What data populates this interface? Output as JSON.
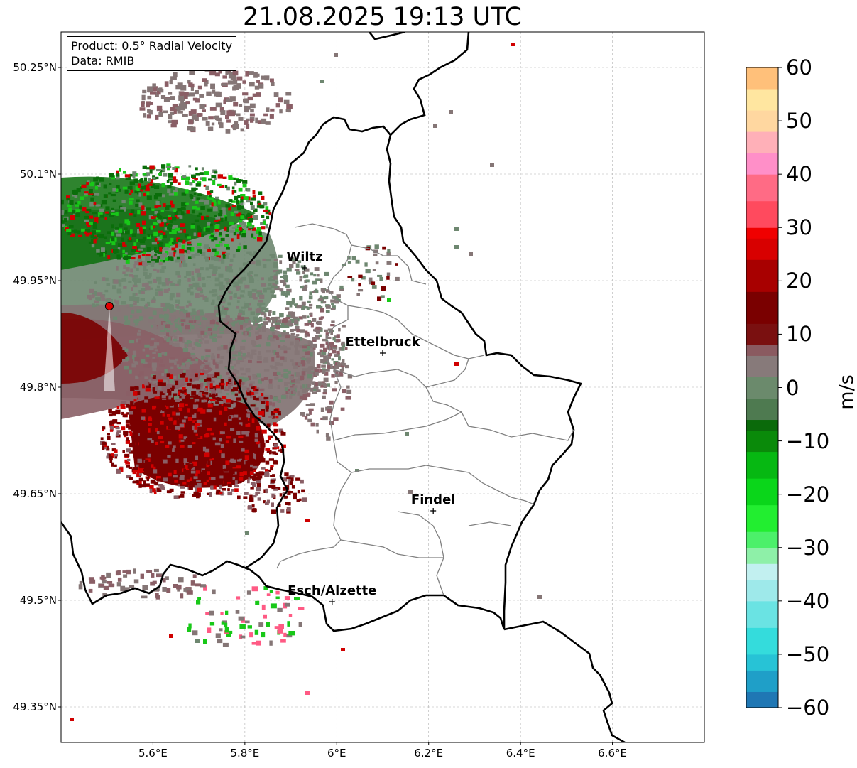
{
  "title": "21.08.2025 19:13 UTC",
  "infobox": {
    "product": "Product: 0.5° Radial Velocity",
    "data": "Data: RMIB"
  },
  "map": {
    "lon_range": [
      5.4,
      6.8
    ],
    "lat_range": [
      49.3,
      50.3
    ],
    "gridlines": true,
    "y_ticks": [
      "50.25°N",
      "50.1°N",
      "49.95°N",
      "49.8°N",
      "49.65°N",
      "49.5°N",
      "49.35°N"
    ],
    "x_ticks": [
      "5.6°E",
      "5.8°E",
      "6°E",
      "6.2°E",
      "6.4°E",
      "6.6°E"
    ],
    "radar_site": {
      "lon": 5.505,
      "lat": 49.914,
      "color": "#e00000"
    },
    "cities": [
      {
        "name": "Wiltz",
        "lon": 5.93,
        "lat": 49.968
      },
      {
        "name": "Ettelbruck",
        "lon": 6.1,
        "lat": 49.848
      },
      {
        "name": "Findel",
        "lon": 6.21,
        "lat": 49.626
      },
      {
        "name": "Esch/Alzette",
        "lon": 5.99,
        "lat": 49.498
      }
    ]
  },
  "colorbar": {
    "label": "m/s",
    "min": -60,
    "max": 60,
    "ticks": [
      "60",
      "50",
      "40",
      "30",
      "20",
      "10",
      "0",
      "−10",
      "−20",
      "−30",
      "−40",
      "−50",
      "−60"
    ],
    "tick_values": [
      60,
      50,
      40,
      30,
      20,
      10,
      0,
      -10,
      -20,
      -30,
      -40,
      -50,
      -60
    ],
    "stops": [
      {
        "v": -60,
        "c": "#1f77b4"
      },
      {
        "v": -57,
        "c": "#1f9fc8"
      },
      {
        "v": -53,
        "c": "#27c3d6"
      },
      {
        "v": -50,
        "c": "#34dcdc"
      },
      {
        "v": -45,
        "c": "#6ae3e3"
      },
      {
        "v": -40,
        "c": "#9ee9ea"
      },
      {
        "v": -36,
        "c": "#c2f0f0"
      },
      {
        "v": -33,
        "c": "#8ef0a8"
      },
      {
        "v": -30,
        "c": "#4cf06a"
      },
      {
        "v": -27,
        "c": "#22ee30"
      },
      {
        "v": -22,
        "c": "#0ad61a"
      },
      {
        "v": -17,
        "c": "#06b812"
      },
      {
        "v": -12,
        "c": "#0a8a0a"
      },
      {
        "v": -8,
        "c": "#0a6a0a"
      },
      {
        "v": -6,
        "c": "#4e7a50"
      },
      {
        "v": -2,
        "c": "#6b8a6c"
      },
      {
        "v": 2,
        "c": "#877a7a"
      },
      {
        "v": 6,
        "c": "#8a5a60"
      },
      {
        "v": 8,
        "c": "#7a1010"
      },
      {
        "v": 12,
        "c": "#7a0000"
      },
      {
        "v": 18,
        "c": "#a80000"
      },
      {
        "v": 24,
        "c": "#d80000"
      },
      {
        "v": 28,
        "c": "#f00000"
      },
      {
        "v": 30,
        "c": "#ff4a5e"
      },
      {
        "v": 35,
        "c": "#ff6b85"
      },
      {
        "v": 40,
        "c": "#ff8fc8"
      },
      {
        "v": 44,
        "c": "#ffb0b8"
      },
      {
        "v": 48,
        "c": "#ffd7a0"
      },
      {
        "v": 52,
        "c": "#ffe6a0"
      },
      {
        "v": 56,
        "c": "#ffc07a"
      },
      {
        "v": 60,
        "c": "#ff9f50"
      }
    ]
  },
  "velocity_colors": {
    "gray": "#857676",
    "mauve": "#8a5f66",
    "darkred": "#7a0000",
    "green_gray": "#6e8770",
    "dark_green": "#0a6e0a",
    "bright_green": "#18c818",
    "red": "#d00000",
    "pink": "#ff5a84"
  }
}
